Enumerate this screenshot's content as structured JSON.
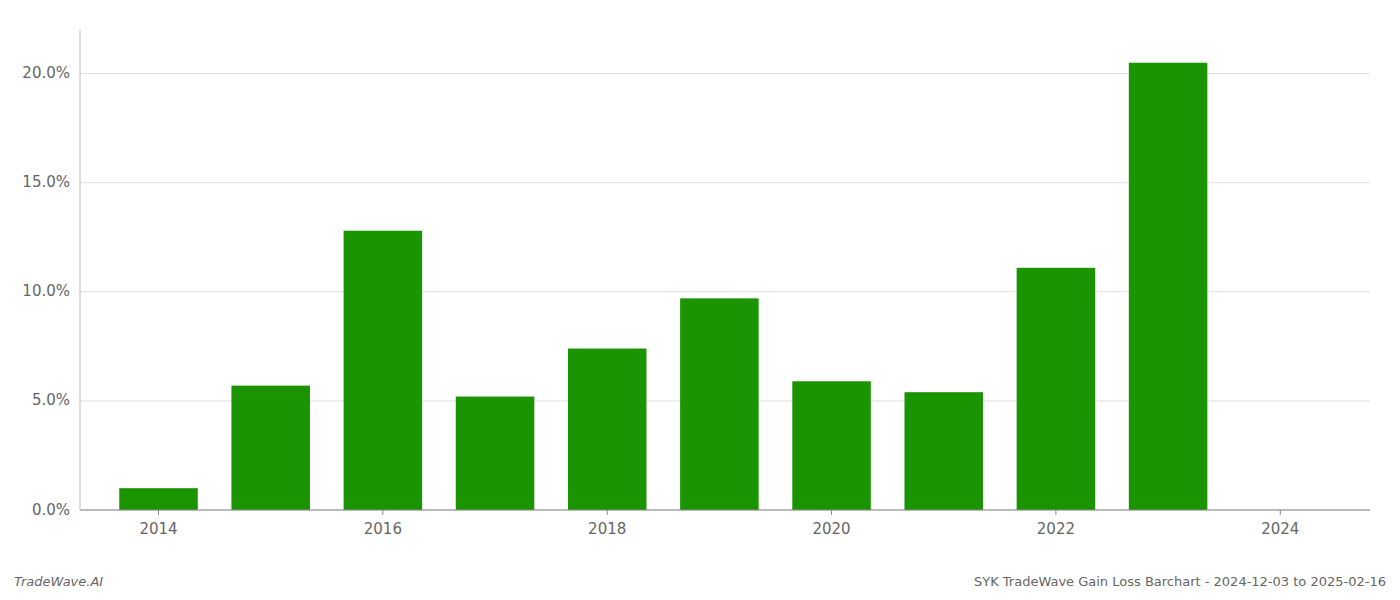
{
  "chart_data": {
    "type": "bar",
    "x": [
      2014,
      2015,
      2016,
      2017,
      2018,
      2019,
      2020,
      2021,
      2022,
      2023
    ],
    "values": [
      0.01,
      0.057,
      0.128,
      0.052,
      0.074,
      0.097,
      0.059,
      0.054,
      0.111,
      0.205
    ],
    "color": "#1a9400",
    "xlim": [
      2013.3,
      2024.8
    ],
    "xticks": [
      2014,
      2016,
      2018,
      2020,
      2022,
      2024
    ],
    "ylim": [
      0,
      0.22
    ],
    "yticks": [
      {
        "value": 0.0,
        "label": "0.0%"
      },
      {
        "value": 0.05,
        "label": "5.0%"
      },
      {
        "value": 0.1,
        "label": "10.0%"
      },
      {
        "value": 0.15,
        "label": "15.0%"
      },
      {
        "value": 0.2,
        "label": "20.0%"
      }
    ],
    "grid": true,
    "annotations": [
      "TradeWave.AI",
      "SYK TradeWave Gain Loss Barchart - 2024-12-03 to 2025-02-16"
    ]
  }
}
